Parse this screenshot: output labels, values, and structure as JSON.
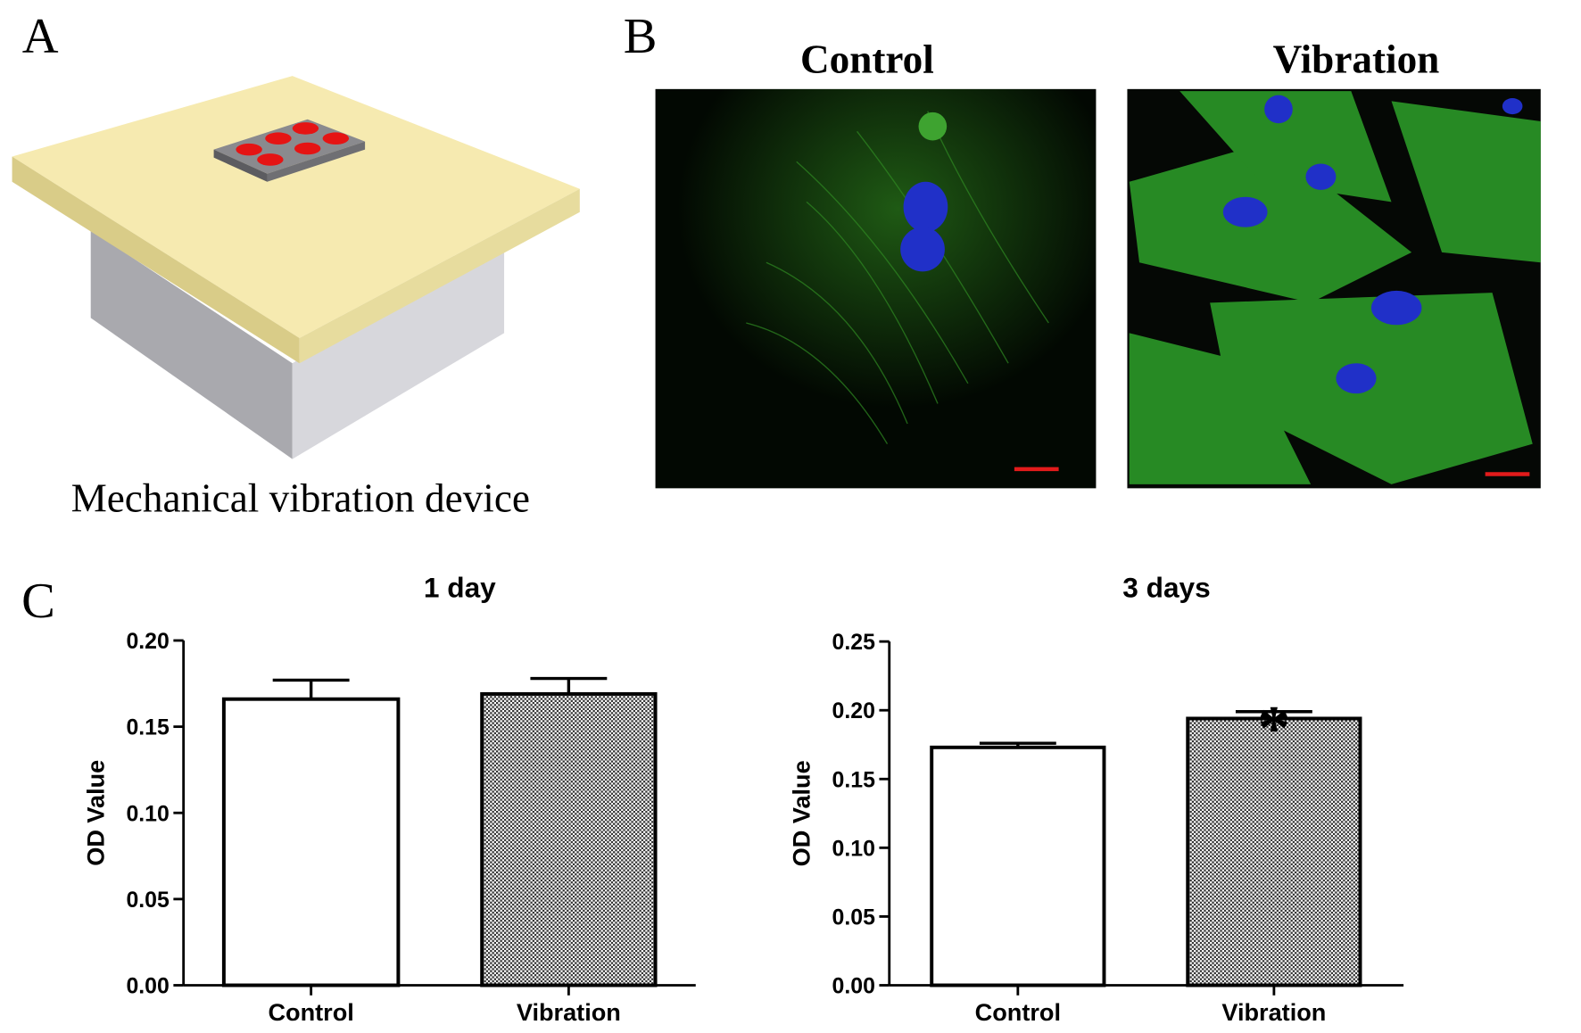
{
  "panel_labels": [
    "A",
    "B",
    "C"
  ],
  "panel_a": {
    "caption": "Mechanical vibration device"
  },
  "panel_b": {
    "titles": [
      "Control",
      "Vibration"
    ]
  },
  "chart_data": [
    {
      "type": "bar",
      "title": "1 day",
      "y_label": "OD Value",
      "categories": [
        "Control",
        "Vibration"
      ],
      "values": [
        0.166,
        0.169
      ],
      "errors": [
        0.011,
        0.009
      ],
      "bar_fills": [
        "white",
        "crosshatch"
      ],
      "ylim": [
        0,
        0.2
      ],
      "yticks": [
        {
          "value": 0,
          "label": "0.00"
        },
        0.05,
        {
          "value": 0.1,
          "label": "0.10"
        },
        0.15,
        {
          "value": 0.2,
          "label": "0.20"
        }
      ]
    },
    {
      "type": "bar",
      "title": "3 days",
      "y_label": "OD Value",
      "categories": [
        "Control",
        "Vibration"
      ],
      "values": [
        0.173,
        0.194
      ],
      "errors": [
        0.003,
        0.005
      ],
      "bar_fills": [
        "white",
        "crosshatch"
      ],
      "annotations": [
        {
          "category": 1,
          "text": "*"
        }
      ],
      "ylim": [
        0,
        0.25
      ],
      "yticks": [
        {
          "value": 0,
          "label": "0.00"
        },
        0.05,
        {
          "value": 0.1,
          "label": "0.10"
        },
        0.15,
        {
          "value": 0.2,
          "label": "0.20"
        },
        0.25
      ]
    }
  ]
}
